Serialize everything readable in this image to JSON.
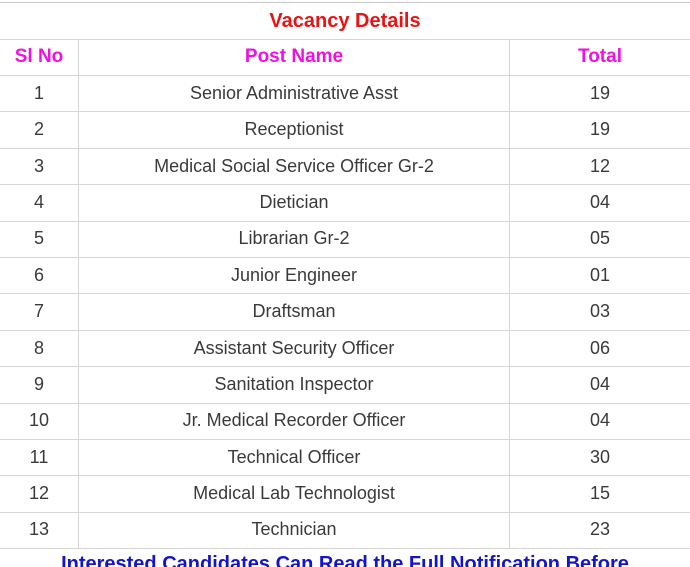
{
  "table": {
    "title": "Vacancy Details",
    "columns": [
      "Sl No",
      "Post Name",
      "Total"
    ],
    "rows": [
      {
        "sl": "1",
        "post": "Senior Administrative Asst",
        "total": "19"
      },
      {
        "sl": "2",
        "post": "Receptionist",
        "total": "19"
      },
      {
        "sl": "3",
        "post": "Medical Social Service Officer Gr-2",
        "total": "12"
      },
      {
        "sl": "4",
        "post": "Dietician",
        "total": "04"
      },
      {
        "sl": "5",
        "post": "Librarian Gr-2",
        "total": "05"
      },
      {
        "sl": "6",
        "post": "Junior Engineer",
        "total": "01"
      },
      {
        "sl": "7",
        "post": "Draftsman",
        "total": "03"
      },
      {
        "sl": "8",
        "post": "Assistant Security Officer",
        "total": "06"
      },
      {
        "sl": "9",
        "post": "Sanitation Inspector",
        "total": "04"
      },
      {
        "sl": "10",
        "post": "Jr. Medical Recorder Officer",
        "total": "04"
      },
      {
        "sl": "11",
        "post": "Technical Officer",
        "total": "30"
      },
      {
        "sl": "12",
        "post": "Medical Lab Technologist",
        "total": "15"
      },
      {
        "sl": "13",
        "post": "Technician",
        "total": "23"
      }
    ]
  },
  "footnote": {
    "text": "Interested Candidates Can Read the Full Notification Before"
  },
  "colors": {
    "title": "#e81414",
    "header": "#f011e1",
    "body_text": "#3a3a3a",
    "footnote": "#1414cc",
    "border": "#d6d6d6"
  }
}
